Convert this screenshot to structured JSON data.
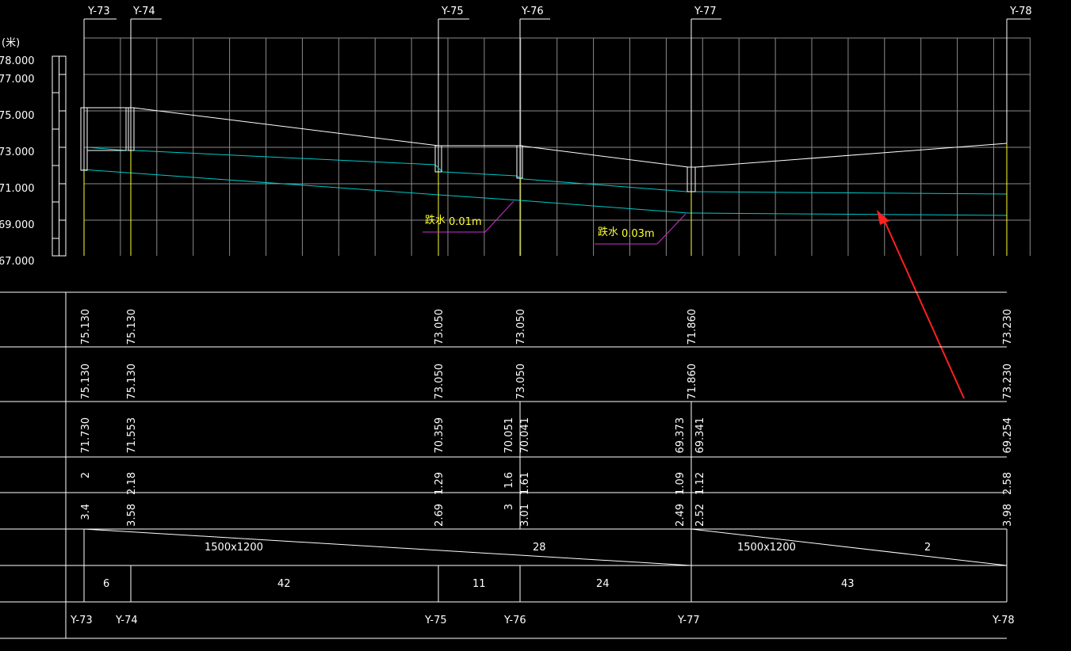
{
  "elevation_axis": {
    "unit_label": "(米)",
    "labels": [
      "78.000",
      "77.000",
      "75.000",
      "73.000",
      "71.000",
      "69.000",
      "67.000"
    ]
  },
  "top_wells": [
    {
      "id": "Y-73"
    },
    {
      "id": "Y-74"
    },
    {
      "id": "Y-75"
    },
    {
      "id": "Y-76"
    },
    {
      "id": "Y-77"
    },
    {
      "id": "Y-78"
    }
  ],
  "annotations": [
    {
      "label": "跌水",
      "value": "0.01m"
    },
    {
      "label": "跌水",
      "value": "0.03m"
    }
  ],
  "rows": {
    "design_ground": [
      "75.130",
      "75.130",
      "73.050",
      "73.050",
      "71.860",
      "73.230"
    ],
    "natural_ground": [
      "75.130",
      "75.130",
      "73.050",
      "73.050",
      "71.860",
      "73.230"
    ],
    "pipe_invert": [
      "71.730",
      "71.553",
      "70.359",
      "70.051",
      "70.041",
      "69.373",
      "69.341",
      "69.254"
    ],
    "depth_a": [
      "2",
      "2.18",
      "1.29",
      "1.6",
      "1.61",
      "1.09",
      "1.12",
      "2.58"
    ],
    "depth_b": [
      "3.4",
      "3.58",
      "2.69",
      "3",
      "3.01",
      "2.49",
      "2.52",
      "3.98"
    ]
  },
  "pipe_segments": [
    {
      "size": "1500x1200",
      "slope": "28"
    },
    {
      "size": "1500x1200",
      "slope": "2"
    }
  ],
  "distances": [
    "6",
    "42",
    "11",
    "24",
    "43"
  ],
  "bottom_wells": [
    "Y-73",
    "Y-74",
    "Y-75",
    "Y-76",
    "Y-77",
    "Y-78"
  ],
  "colors": {
    "grid": "#8a8a8a",
    "line": "#ffffff",
    "pipe": "#00c8c8",
    "well": "#ffff33",
    "drop": "#d030d0",
    "arrow": "#ff2020"
  }
}
